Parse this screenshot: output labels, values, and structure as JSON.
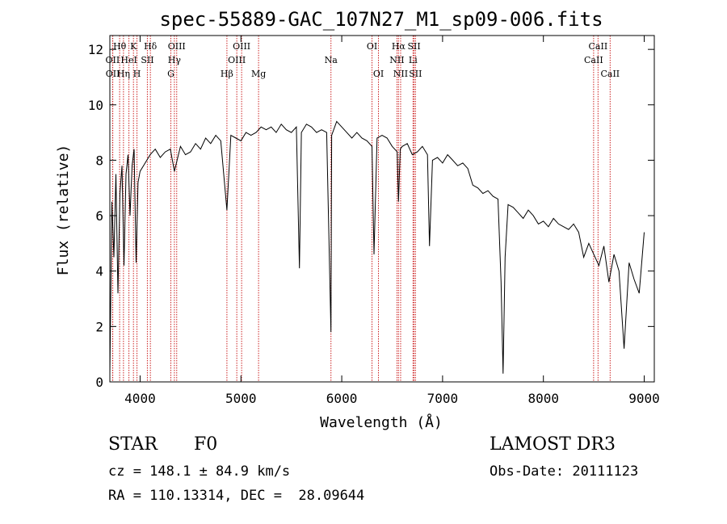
{
  "chart_data": {
    "type": "line",
    "title": "spec-55889-GAC_107N27_M1_sp09-006.fits",
    "xlabel": "Wavelength (Å)",
    "ylabel": "Flux (relative)",
    "xlim": [
      3700,
      9100
    ],
    "ylim": [
      0,
      12.5
    ],
    "xticks": [
      4000,
      5000,
      6000,
      7000,
      8000,
      9000
    ],
    "yticks": [
      0,
      2,
      4,
      6,
      8,
      10,
      12
    ],
    "series": [
      {
        "name": "flux",
        "color": "#000000",
        "x": [
          3700,
          3720,
          3740,
          3760,
          3780,
          3800,
          3820,
          3840,
          3860,
          3880,
          3900,
          3920,
          3940,
          3960,
          3980,
          4000,
          4050,
          4100,
          4150,
          4200,
          4250,
          4300,
          4340,
          4400,
          4450,
          4500,
          4550,
          4600,
          4650,
          4700,
          4750,
          4800,
          4861,
          4900,
          4950,
          5000,
          5050,
          5100,
          5150,
          5200,
          5250,
          5300,
          5350,
          5400,
          5450,
          5500,
          5550,
          5580,
          5600,
          5650,
          5700,
          5750,
          5800,
          5850,
          5893,
          5900,
          5950,
          6000,
          6050,
          6100,
          6150,
          6200,
          6250,
          6300,
          6320,
          6350,
          6400,
          6450,
          6500,
          6550,
          6563,
          6580,
          6600,
          6650,
          6700,
          6750,
          6800,
          6850,
          6870,
          6900,
          6950,
          7000,
          7050,
          7100,
          7150,
          7200,
          7250,
          7300,
          7350,
          7400,
          7450,
          7500,
          7550,
          7580,
          7600,
          7620,
          7650,
          7700,
          7750,
          7800,
          7850,
          7900,
          7950,
          8000,
          8050,
          8100,
          8150,
          8200,
          8250,
          8300,
          8350,
          8400,
          8450,
          8500,
          8550,
          8600,
          8650,
          8700,
          8750,
          8800,
          8850,
          8900,
          8950,
          9000
        ],
        "y": [
          0.3,
          6.5,
          4.5,
          7.5,
          3.2,
          6.8,
          7.8,
          4.2,
          7.5,
          8.2,
          6.0,
          7.8,
          8.4,
          4.3,
          7.2,
          7.6,
          7.9,
          8.2,
          8.4,
          8.1,
          8.3,
          8.4,
          7.6,
          8.5,
          8.2,
          8.3,
          8.6,
          8.4,
          8.8,
          8.6,
          8.9,
          8.7,
          6.2,
          8.9,
          8.8,
          8.7,
          9.0,
          8.9,
          9.0,
          9.2,
          9.1,
          9.2,
          9.0,
          9.3,
          9.1,
          9.0,
          9.2,
          4.1,
          9.0,
          9.3,
          9.2,
          9.0,
          9.1,
          9.0,
          1.8,
          8.9,
          9.4,
          9.2,
          9.0,
          8.8,
          9.0,
          8.8,
          8.7,
          8.5,
          4.6,
          8.8,
          8.9,
          8.8,
          8.5,
          8.3,
          6.5,
          8.4,
          8.5,
          8.6,
          8.2,
          8.3,
          8.5,
          8.2,
          4.9,
          8.0,
          8.1,
          7.9,
          8.2,
          8.0,
          7.8,
          7.9,
          7.7,
          7.1,
          7.0,
          6.8,
          6.9,
          6.7,
          6.6,
          3.6,
          0.3,
          4.5,
          6.4,
          6.3,
          6.1,
          5.9,
          6.2,
          6.0,
          5.7,
          5.8,
          5.6,
          5.9,
          5.7,
          5.6,
          5.5,
          5.7,
          5.4,
          4.5,
          5.0,
          4.6,
          4.2,
          4.9,
          3.6,
          4.6,
          4.0,
          1.2,
          4.3,
          3.7,
          3.2,
          5.4
        ]
      }
    ],
    "lines": [
      {
        "label": "Hθ",
        "x": 3797,
        "row": 1
      },
      {
        "label": "OII",
        "x": 3727,
        "row": 2
      },
      {
        "label": "OII",
        "x": 3729,
        "row": 3
      },
      {
        "label": "Hη",
        "x": 3835,
        "row": 3
      },
      {
        "label": "HeI",
        "x": 3889,
        "row": 2
      },
      {
        "label": "K",
        "x": 3934,
        "row": 1
      },
      {
        "label": "H",
        "x": 3969,
        "row": 3
      },
      {
        "label": "Hδ",
        "x": 4102,
        "row": 1
      },
      {
        "label": "SII",
        "x": 4072,
        "row": 2
      },
      {
        "label": "OIII",
        "x": 4363,
        "row": 1
      },
      {
        "label": "Hγ",
        "x": 4340,
        "row": 2
      },
      {
        "label": "G",
        "x": 4305,
        "row": 3
      },
      {
        "label": "OIII",
        "x": 5007,
        "row": 1
      },
      {
        "label": "OIII",
        "x": 4959,
        "row": 2
      },
      {
        "label": "Hβ",
        "x": 4861,
        "row": 3
      },
      {
        "label": "Mg",
        "x": 5175,
        "row": 3
      },
      {
        "label": "Na",
        "x": 5893,
        "row": 2
      },
      {
        "label": "OI",
        "x": 6300,
        "row": 1
      },
      {
        "label": "OI",
        "x": 6364,
        "row": 3
      },
      {
        "label": "Hα",
        "x": 6563,
        "row": 1
      },
      {
        "label": "SII",
        "x": 6717,
        "row": 1
      },
      {
        "label": "NII",
        "x": 6548,
        "row": 2
      },
      {
        "label": "Li",
        "x": 6707,
        "row": 2
      },
      {
        "label": "NII",
        "x": 6584,
        "row": 3
      },
      {
        "label": "SII",
        "x": 6731,
        "row": 3
      },
      {
        "label": "CaII",
        "x": 8542,
        "row": 1
      },
      {
        "label": "CaII",
        "x": 8498,
        "row": 2
      },
      {
        "label": "CaII",
        "x": 8662,
        "row": 3
      }
    ],
    "line_color": "#cc2222"
  },
  "footer": {
    "object_type": "STAR",
    "spectral_class": "F0",
    "redshift": "cz = 148.1 ± 84.9 km/s",
    "coordinates": "RA = 110.13314, DEC =  28.09644",
    "survey": "LAMOST DR3",
    "obs_date": "Obs-Date: 20111123"
  }
}
